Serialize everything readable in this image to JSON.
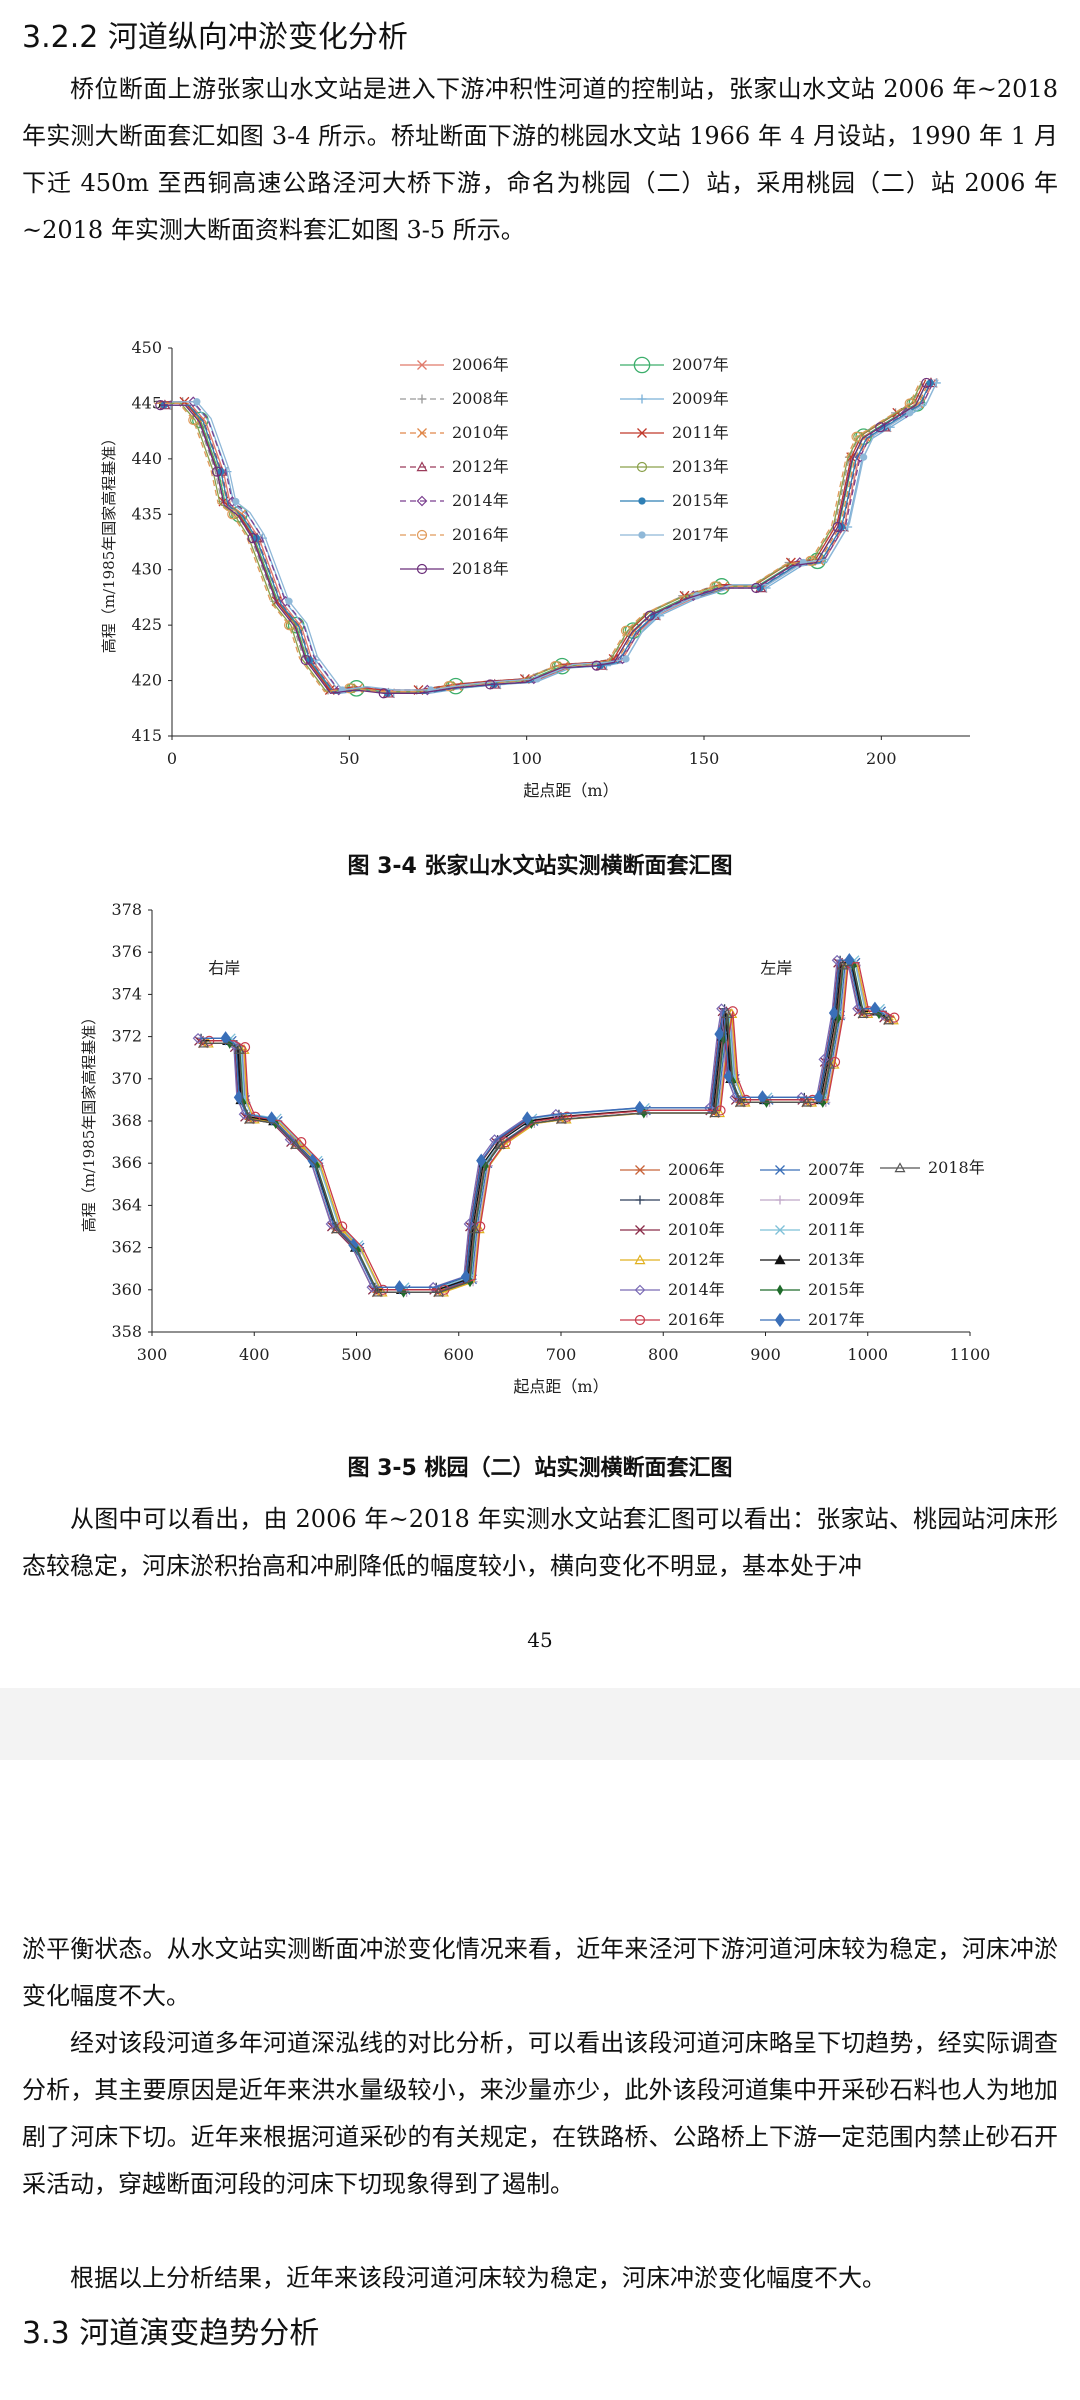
{
  "page1": {
    "section_heading": "3.2.2 河道纵向冲淤变化分析",
    "para1": "桥位断面上游张家山水文站是进入下游冲积性河道的控制站，张家山水文站 2006 年~2018 年实测大断面套汇如图 3-4 所示。桥址断面下游的桃园水文站 1966 年 4 月设站，1990 年 1 月下迁 450m 至西铜高速公路泾河大桥下游，命名为桃园（二）站，采用桃园（二）站 2006 年~2018 年实测大断面资料套汇如图 3-5 所示。",
    "fig1_caption": "图 3-4 张家山水文站实测横断面套汇图",
    "fig2_caption": "图 3-5 桃园（二）站实测横断面套汇图",
    "para2": "从图中可以看出，由 2006 年~2018 年实测水文站套汇图可以看出：张家站、桃园站河床形态较稳定，河床淤积抬高和冲刷降低的幅度较小，横向变化不明显，基本处于冲",
    "page_number": "45"
  },
  "page2": {
    "para1": "淤平衡状态。从水文站实测断面冲淤变化情况来看，近年来泾河下游河道河床较为稳定，河床冲淤变化幅度不大。",
    "para2": "经对该段河道多年河道深泓线的对比分析，可以看出该段河道河床略呈下切趋势，经实际调查分析，其主要原因是近年来洪水量级较小，来沙量亦少，此外该段河道集中开采砂石料也人为地加剧了河床下切。近年来根据河道采砂的有关规定，在铁路桥、公路桥上下游一定范围内禁止砂石开采活动，穿越断面河段的河床下切现象得到了遏制。",
    "para3": "根据以上分析结果，近年来该段河道河床较为稳定，河床冲淤变化幅度不大。",
    "section_heading": "3.3 河道演变趋势分析"
  },
  "chart_data": [
    {
      "type": "line",
      "title": "",
      "xlabel": "起点距（m）",
      "ylabel": "高程（m/1985年国家高程基准）",
      "xlim": [
        0,
        225
      ],
      "ylim": [
        415,
        450
      ],
      "x_ticks": [
        "0",
        "50",
        "100",
        "150",
        "200"
      ],
      "y_ticks": [
        "415",
        "420",
        "425",
        "430",
        "435",
        "440",
        "445",
        "450"
      ],
      "grid": false,
      "legend_position": "top-center",
      "base_profile": [
        [
          -3,
          445
        ],
        [
          4,
          445
        ],
        [
          8,
          443.5
        ],
        [
          13,
          439
        ],
        [
          15,
          436
        ],
        [
          19,
          435
        ],
        [
          23,
          433
        ],
        [
          30,
          427
        ],
        [
          35,
          425
        ],
        [
          38,
          422
        ],
        [
          45,
          419
        ],
        [
          52,
          419.3
        ],
        [
          60,
          419
        ],
        [
          70,
          419
        ],
        [
          80,
          419.5
        ],
        [
          90,
          419.8
        ],
        [
          100,
          420
        ],
        [
          110,
          421.3
        ],
        [
          120,
          421.5
        ],
        [
          125,
          421.8
        ],
        [
          130,
          424.5
        ],
        [
          135,
          426
        ],
        [
          145,
          427.5
        ],
        [
          155,
          428.5
        ],
        [
          165,
          428.5
        ],
        [
          175,
          430.5
        ],
        [
          182,
          430.8
        ],
        [
          188,
          434
        ],
        [
          192,
          440
        ],
        [
          195,
          442
        ],
        [
          200,
          443
        ],
        [
          205,
          444
        ],
        [
          210,
          445
        ],
        [
          213,
          447
        ]
      ],
      "series": [
        {
          "name": "2006年",
          "color": "#e07b6b",
          "dash": "",
          "marker": "x",
          "offset": 1.5
        },
        {
          "name": "2007年",
          "color": "#3cae6b",
          "dash": "",
          "marker": "circle-large",
          "offset": 0
        },
        {
          "name": "2008年",
          "color": "#999999",
          "dash": "6 4",
          "marker": "plus",
          "offset": -1
        },
        {
          "name": "2009年",
          "color": "#7ab0d8",
          "dash": "",
          "marker": "plus",
          "offset": 2.5
        },
        {
          "name": "2010年",
          "color": "#e0884a",
          "dash": "6 4",
          "marker": "x",
          "offset": 0.5
        },
        {
          "name": "2011年",
          "color": "#c0392b",
          "dash": "",
          "marker": "x",
          "offset": -0.5
        },
        {
          "name": "2012年",
          "color": "#9b3b5a",
          "dash": "6 4",
          "marker": "triangle",
          "offset": 1
        },
        {
          "name": "2013年",
          "color": "#8aa04a",
          "dash": "",
          "marker": "circle",
          "offset": -1.5
        },
        {
          "name": "2014年",
          "color": "#7a3f8f",
          "dash": "6 4",
          "marker": "diamond",
          "offset": 2
        },
        {
          "name": "2015年",
          "color": "#2f7fb5",
          "dash": "",
          "marker": "circle-small",
          "offset": 0.8
        },
        {
          "name": "2016年",
          "color": "#e09a5a",
          "dash": "6 4",
          "marker": "circle",
          "offset": -2
        },
        {
          "name": "2017年",
          "color": "#8fb8d8",
          "dash": "",
          "marker": "circle-small",
          "offset": 3
        },
        {
          "name": "2018年",
          "color": "#6b2f7a",
          "dash": "",
          "marker": "circle",
          "offset": -0.3
        }
      ]
    },
    {
      "type": "line",
      "title": "",
      "xlabel": "起点距（m）",
      "ylabel": "高程（m/1985年国家高程基准）",
      "xlim": [
        300,
        1100
      ],
      "ylim": [
        358,
        378
      ],
      "x_ticks": [
        "300",
        "400",
        "500",
        "600",
        "700",
        "800",
        "900",
        "1000",
        "1100"
      ],
      "y_ticks": [
        "358",
        "360",
        "362",
        "364",
        "366",
        "368",
        "370",
        "372",
        "374",
        "376",
        "378"
      ],
      "grid": false,
      "annotations": [
        "右岸",
        "左岸"
      ],
      "legend_position": "right-center",
      "base_profile": [
        [
          350,
          371.8
        ],
        [
          375,
          371.8
        ],
        [
          385,
          371.5
        ],
        [
          388,
          369
        ],
        [
          395,
          368.2
        ],
        [
          420,
          368
        ],
        [
          440,
          367
        ],
        [
          460,
          366
        ],
        [
          480,
          363
        ],
        [
          500,
          362
        ],
        [
          520,
          360
        ],
        [
          545,
          360
        ],
        [
          580,
          360
        ],
        [
          610,
          360.5
        ],
        [
          615,
          363
        ],
        [
          625,
          366
        ],
        [
          640,
          367
        ],
        [
          670,
          368
        ],
        [
          700,
          368.2
        ],
        [
          780,
          368.5
        ],
        [
          850,
          368.5
        ],
        [
          858,
          372
        ],
        [
          862,
          373.2
        ],
        [
          867,
          370
        ],
        [
          875,
          369
        ],
        [
          900,
          369
        ],
        [
          940,
          369
        ],
        [
          955,
          369
        ],
        [
          962,
          370.8
        ],
        [
          970,
          373
        ],
        [
          975,
          375.5
        ],
        [
          985,
          375.5
        ],
        [
          995,
          373.2
        ],
        [
          1010,
          373.2
        ],
        [
          1020,
          372.9
        ]
      ],
      "series": [
        {
          "name": "2006年",
          "color": "#c8633a",
          "marker": "asterisk",
          "offset": 0
        },
        {
          "name": "2007年",
          "color": "#3a6fb8",
          "marker": "asterisk",
          "offset": 3
        },
        {
          "name": "2008年",
          "color": "#2d3e5a",
          "marker": "plus",
          "offset": -2
        },
        {
          "name": "2009年",
          "color": "#bfa6c8",
          "marker": "plus",
          "offset": 4
        },
        {
          "name": "2010年",
          "color": "#8a2d4a",
          "marker": "x",
          "offset": -4
        },
        {
          "name": "2011年",
          "color": "#7ec0d8",
          "marker": "x",
          "offset": 2
        },
        {
          "name": "2012年",
          "color": "#e0b020",
          "marker": "triangle",
          "offset": 5
        },
        {
          "name": "2013年",
          "color": "#111111",
          "marker": "triangle-filled",
          "offset": -1
        },
        {
          "name": "2014年",
          "color": "#7a6ab5",
          "marker": "diamond",
          "offset": -5
        },
        {
          "name": "2015年",
          "color": "#1f6b2a",
          "marker": "diamond-filled-small",
          "offset": 1
        },
        {
          "name": "2016年",
          "color": "#c83a4a",
          "marker": "circle",
          "offset": 6
        },
        {
          "name": "2017年",
          "color": "#3a6fb8",
          "marker": "diamond-filled",
          "offset": -3
        },
        {
          "name": "2018年",
          "color": "#555555",
          "marker": "triangle",
          "offset": 0.5
        }
      ]
    }
  ]
}
